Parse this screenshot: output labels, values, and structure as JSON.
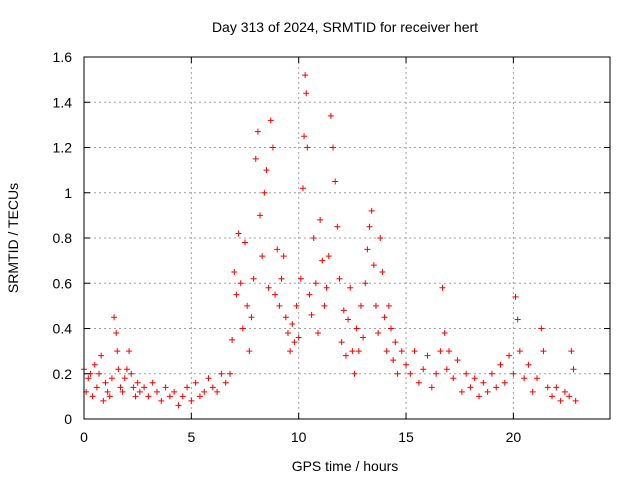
{
  "chart_data": {
    "type": "scatter",
    "title": "Day 313 of 2024, SRMTID for receiver hert",
    "xlabel": "GPS time / hours",
    "ylabel": "SRMTID / TECUs",
    "xlim": [
      0,
      24.5
    ],
    "ylim": [
      0,
      1.6
    ],
    "xticks": [
      0,
      5,
      10,
      15,
      20
    ],
    "xtick_labels": [
      "0",
      "5",
      "10",
      "15",
      "20"
    ],
    "yticks": [
      0,
      0.2,
      0.4,
      0.6,
      0.8,
      1.0,
      1.2,
      1.4,
      1.6
    ],
    "ytick_labels": [
      "0",
      "0.2",
      "0.4",
      "0.6",
      "0.8",
      "1",
      "1.2",
      "1.4",
      "1.6"
    ],
    "grid": true,
    "marker": "+",
    "marker_color": "#ff0000",
    "series": [
      {
        "name": "SRMTID",
        "points": [
          [
            0.0,
            0.22
          ],
          [
            0.1,
            0.12
          ],
          [
            0.2,
            0.18
          ],
          [
            0.3,
            0.2
          ],
          [
            0.4,
            0.1
          ],
          [
            0.5,
            0.24
          ],
          [
            0.6,
            0.14
          ],
          [
            0.7,
            0.2
          ],
          [
            0.8,
            0.28
          ],
          [
            0.9,
            0.08
          ],
          [
            1.0,
            0.16
          ],
          [
            1.1,
            0.12
          ],
          [
            1.2,
            0.1
          ],
          [
            1.3,
            0.18
          ],
          [
            1.4,
            0.45
          ],
          [
            1.5,
            0.38
          ],
          [
            1.55,
            0.3
          ],
          [
            1.6,
            0.22
          ],
          [
            1.7,
            0.14
          ],
          [
            1.8,
            0.12
          ],
          [
            1.9,
            0.18
          ],
          [
            2.0,
            0.22
          ],
          [
            2.1,
            0.3
          ],
          [
            2.2,
            0.2
          ],
          [
            2.3,
            0.14
          ],
          [
            2.4,
            0.1
          ],
          [
            2.5,
            0.16
          ],
          [
            2.6,
            0.12
          ],
          [
            2.8,
            0.14
          ],
          [
            3.0,
            0.1
          ],
          [
            3.2,
            0.16
          ],
          [
            3.4,
            0.12
          ],
          [
            3.6,
            0.08
          ],
          [
            3.8,
            0.14
          ],
          [
            4.0,
            0.1
          ],
          [
            4.2,
            0.12
          ],
          [
            4.4,
            0.06
          ],
          [
            4.6,
            0.1
          ],
          [
            4.8,
            0.14
          ],
          [
            5.0,
            0.08
          ],
          [
            5.2,
            0.16
          ],
          [
            5.4,
            0.1
          ],
          [
            5.6,
            0.12
          ],
          [
            5.8,
            0.18
          ],
          [
            6.0,
            0.14
          ],
          [
            6.2,
            0.12
          ],
          [
            6.4,
            0.2
          ],
          [
            6.6,
            0.16
          ],
          [
            6.8,
            0.2
          ],
          [
            6.9,
            0.35
          ],
          [
            7.0,
            0.65
          ],
          [
            7.1,
            0.55
          ],
          [
            7.2,
            0.82
          ],
          [
            7.3,
            0.6
          ],
          [
            7.4,
            0.4
          ],
          [
            7.5,
            0.78
          ],
          [
            7.6,
            0.5
          ],
          [
            7.7,
            0.3
          ],
          [
            7.8,
            0.45
          ],
          [
            7.9,
            0.62
          ],
          [
            8.0,
            1.15
          ],
          [
            8.1,
            1.27
          ],
          [
            8.2,
            0.9
          ],
          [
            8.3,
            0.72
          ],
          [
            8.4,
            1.0
          ],
          [
            8.5,
            1.1
          ],
          [
            8.6,
            0.58
          ],
          [
            8.7,
            1.32
          ],
          [
            8.8,
            1.2
          ],
          [
            8.9,
            0.55
          ],
          [
            9.0,
            0.75
          ],
          [
            9.1,
            0.5
          ],
          [
            9.2,
            0.62
          ],
          [
            9.3,
            0.72
          ],
          [
            9.4,
            0.45
          ],
          [
            9.5,
            0.38
          ],
          [
            9.6,
            0.3
          ],
          [
            9.7,
            0.42
          ],
          [
            9.8,
            0.34
          ],
          [
            9.9,
            0.5
          ],
          [
            10.0,
            0.36
          ],
          [
            10.1,
            0.62
          ],
          [
            10.2,
            1.02
          ],
          [
            10.25,
            1.25
          ],
          [
            10.3,
            1.52
          ],
          [
            10.35,
            1.44
          ],
          [
            10.4,
            1.2
          ],
          [
            10.5,
            0.55
          ],
          [
            10.6,
            0.46
          ],
          [
            10.7,
            0.8
          ],
          [
            10.8,
            0.6
          ],
          [
            10.9,
            0.38
          ],
          [
            11.0,
            0.88
          ],
          [
            11.1,
            0.7
          ],
          [
            11.2,
            0.5
          ],
          [
            11.3,
            0.58
          ],
          [
            11.4,
            0.72
          ],
          [
            11.5,
            1.34
          ],
          [
            11.6,
            1.2
          ],
          [
            11.7,
            1.05
          ],
          [
            11.8,
            0.85
          ],
          [
            11.9,
            0.62
          ],
          [
            12.0,
            0.34
          ],
          [
            12.1,
            0.48
          ],
          [
            12.2,
            0.28
          ],
          [
            12.3,
            0.44
          ],
          [
            12.4,
            0.58
          ],
          [
            12.5,
            0.3
          ],
          [
            12.6,
            0.2
          ],
          [
            12.7,
            0.4
          ],
          [
            12.8,
            0.3
          ],
          [
            12.9,
            0.5
          ],
          [
            13.0,
            0.36
          ],
          [
            13.1,
            0.6
          ],
          [
            13.2,
            0.75
          ],
          [
            13.3,
            0.85
          ],
          [
            13.4,
            0.92
          ],
          [
            13.5,
            0.68
          ],
          [
            13.6,
            0.5
          ],
          [
            13.7,
            0.38
          ],
          [
            13.8,
            0.8
          ],
          [
            13.9,
            0.65
          ],
          [
            14.0,
            0.45
          ],
          [
            14.1,
            0.3
          ],
          [
            14.2,
            0.5
          ],
          [
            14.3,
            0.4
          ],
          [
            14.4,
            0.26
          ],
          [
            14.5,
            0.34
          ],
          [
            14.6,
            0.2
          ],
          [
            14.8,
            0.3
          ],
          [
            15.0,
            0.24
          ],
          [
            15.2,
            0.2
          ],
          [
            15.4,
            0.3
          ],
          [
            15.6,
            0.16
          ],
          [
            15.8,
            0.22
          ],
          [
            16.0,
            0.28
          ],
          [
            16.2,
            0.14
          ],
          [
            16.4,
            0.2
          ],
          [
            16.6,
            0.3
          ],
          [
            16.7,
            0.58
          ],
          [
            16.8,
            0.38
          ],
          [
            16.9,
            0.22
          ],
          [
            17.0,
            0.3
          ],
          [
            17.2,
            0.18
          ],
          [
            17.4,
            0.26
          ],
          [
            17.6,
            0.12
          ],
          [
            17.8,
            0.2
          ],
          [
            18.0,
            0.14
          ],
          [
            18.2,
            0.18
          ],
          [
            18.4,
            0.1
          ],
          [
            18.6,
            0.16
          ],
          [
            18.8,
            0.12
          ],
          [
            19.0,
            0.2
          ],
          [
            19.2,
            0.14
          ],
          [
            19.4,
            0.24
          ],
          [
            19.6,
            0.16
          ],
          [
            19.8,
            0.28
          ],
          [
            20.0,
            0.2
          ],
          [
            20.1,
            0.54
          ],
          [
            20.2,
            0.44
          ],
          [
            20.3,
            0.3
          ],
          [
            20.5,
            0.18
          ],
          [
            20.7,
            0.24
          ],
          [
            20.9,
            0.12
          ],
          [
            21.1,
            0.18
          ],
          [
            21.3,
            0.4
          ],
          [
            21.4,
            0.3
          ],
          [
            21.6,
            0.14
          ],
          [
            21.8,
            0.1
          ],
          [
            22.0,
            0.14
          ],
          [
            22.2,
            0.08
          ],
          [
            22.4,
            0.12
          ],
          [
            22.6,
            0.1
          ],
          [
            22.7,
            0.3
          ],
          [
            22.8,
            0.22
          ],
          [
            22.9,
            0.08
          ]
        ]
      }
    ]
  }
}
